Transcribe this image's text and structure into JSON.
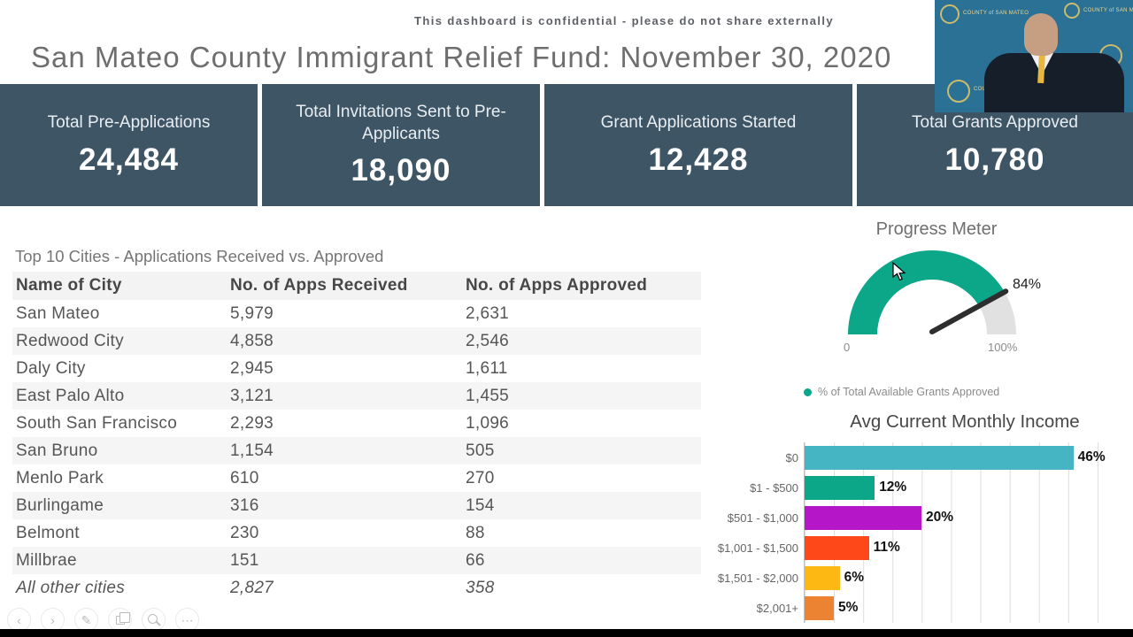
{
  "header": {
    "confidential_notice": "This dashboard is confidential - please do not share externally",
    "title": "San Mateo County Immigrant Relief Fund: November 30, 2020"
  },
  "kpis": [
    {
      "label": "Total Pre-Applications",
      "value": "24,484"
    },
    {
      "label": "Total Invitations Sent to Pre-Applicants",
      "value": "18,090"
    },
    {
      "label": "Grant Applications Started",
      "value": "12,428"
    },
    {
      "label": "Total Grants Approved",
      "value": "10,780"
    }
  ],
  "city_table": {
    "title": "Top 10 Cities - Applications Received vs. Approved",
    "columns": [
      "Name of City",
      "No. of Apps Received",
      "No. of Apps Approved"
    ],
    "rows": [
      {
        "city": "San Mateo",
        "received": "5,979",
        "approved": "2,631"
      },
      {
        "city": "Redwood City",
        "received": "4,858",
        "approved": "2,546"
      },
      {
        "city": "Daly City",
        "received": "2,945",
        "approved": "1,611"
      },
      {
        "city": "East Palo Alto",
        "received": "3,121",
        "approved": "1,455"
      },
      {
        "city": "South San Francisco",
        "received": "2,293",
        "approved": "1,096"
      },
      {
        "city": "San Bruno",
        "received": "1,154",
        "approved": "505"
      },
      {
        "city": "Menlo Park",
        "received": "610",
        "approved": "270"
      },
      {
        "city": "Burlingame",
        "received": "316",
        "approved": "154"
      },
      {
        "city": "Belmont",
        "received": "230",
        "approved": "88"
      },
      {
        "city": "Millbrae",
        "received": "151",
        "approved": "66"
      },
      {
        "city": "All other cities",
        "received": "2,827",
        "approved": "358"
      }
    ]
  },
  "gauge": {
    "title": "Progress Meter",
    "value": 84,
    "value_label": "84%",
    "min_label": "0",
    "max_label": "100%",
    "legend": "% of Total Available Grants Approved",
    "color": "#0ca789",
    "track_color": "#e1e1e1"
  },
  "income_chart": {
    "title": "Avg Current Monthly Income",
    "xmax": 55,
    "bars": [
      {
        "label": "$0",
        "value": 46,
        "value_label": "46%",
        "color": "#45b5c4"
      },
      {
        "label": "$1 - $500",
        "value": 12,
        "value_label": "12%",
        "color": "#0ca789"
      },
      {
        "label": "$501 - $1,000",
        "value": 20,
        "value_label": "20%",
        "color": "#b517c8"
      },
      {
        "label": "$1,001 - $1,500",
        "value": 11,
        "value_label": "11%",
        "color": "#fe4819"
      },
      {
        "label": "$1,501 - $2,000",
        "value": 6,
        "value_label": "6%",
        "color": "#fdb813"
      },
      {
        "label": "$2,001+",
        "value": 5,
        "value_label": "5%",
        "color": "#ec8333"
      }
    ]
  },
  "toolbar": {
    "buttons": [
      {
        "name": "back",
        "glyph": "‹"
      },
      {
        "name": "forward",
        "glyph": "›"
      },
      {
        "name": "edit",
        "glyph": "✎"
      },
      {
        "name": "copy",
        "glyph": ""
      },
      {
        "name": "zoom",
        "glyph": ""
      },
      {
        "name": "more",
        "glyph": "⋯"
      }
    ]
  },
  "webcam": {
    "watermark": "COUNTY of SAN MATEO"
  },
  "chart_data": [
    {
      "type": "gauge",
      "title": "Progress Meter",
      "value": 84,
      "min": 0,
      "max": 100,
      "unit": "%",
      "legend": "% of Total Available Grants Approved",
      "color": "#0ca789"
    },
    {
      "type": "bar",
      "orientation": "horizontal",
      "title": "Avg Current Monthly Income",
      "categories": [
        "$0",
        "$1 - $500",
        "$501 - $1,000",
        "$1,001 - $1,500",
        "$1,501 - $2,000",
        "$2,001+"
      ],
      "values": [
        46,
        12,
        20,
        11,
        6,
        5
      ],
      "unit": "%",
      "xlim": [
        0,
        55
      ],
      "grid": true,
      "data_labels": [
        "46%",
        "12%",
        "20%",
        "11%",
        "6%",
        "5%"
      ]
    },
    {
      "type": "table",
      "title": "Top 10 Cities - Applications Received vs. Approved",
      "columns": [
        "Name of City",
        "No. of Apps Received",
        "No. of Apps Approved"
      ],
      "rows": [
        [
          "San Mateo",
          5979,
          2631
        ],
        [
          "Redwood City",
          4858,
          2546
        ],
        [
          "Daly City",
          2945,
          1611
        ],
        [
          "East Palo Alto",
          3121,
          1455
        ],
        [
          "South San Francisco",
          2293,
          1096
        ],
        [
          "San Bruno",
          1154,
          505
        ],
        [
          "Menlo Park",
          610,
          270
        ],
        [
          "Burlingame",
          316,
          154
        ],
        [
          "Belmont",
          230,
          88
        ],
        [
          "Millbrae",
          151,
          66
        ],
        [
          "All other cities",
          2827,
          358
        ]
      ]
    }
  ]
}
